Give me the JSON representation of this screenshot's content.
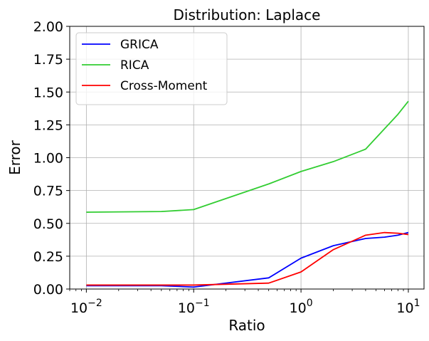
{
  "chart_data": {
    "type": "line",
    "title": "Distribution: Laplace",
    "xlabel": "Ratio",
    "ylabel": "Error",
    "xscale": "log",
    "xlim": [
      0.007,
      14
    ],
    "ylim": [
      0,
      2
    ],
    "grid": true,
    "legend_position": "top-left",
    "x_ticks": [
      {
        "value": 0.01,
        "base": "10",
        "exp": "−2"
      },
      {
        "value": 0.1,
        "base": "10",
        "exp": "−1"
      },
      {
        "value": 1,
        "base": "10",
        "exp": "0"
      },
      {
        "value": 10,
        "base": "10",
        "exp": "1"
      }
    ],
    "y_ticks": [
      {
        "value": 0,
        "label": "0.00"
      },
      {
        "value": 0.25,
        "label": "0.25"
      },
      {
        "value": 0.5,
        "label": "0.50"
      },
      {
        "value": 0.75,
        "label": "0.75"
      },
      {
        "value": 1.0,
        "label": "1.00"
      },
      {
        "value": 1.25,
        "label": "1.25"
      },
      {
        "value": 1.5,
        "label": "1.50"
      },
      {
        "value": 1.75,
        "label": "1.75"
      },
      {
        "value": 2.0,
        "label": "2.00"
      }
    ],
    "x": [
      0.01,
      0.05,
      0.1,
      0.5,
      1,
      2,
      4,
      6,
      8,
      10
    ],
    "series": [
      {
        "name": "GRICA",
        "color": "#0000ff",
        "values": [
          0.025,
          0.025,
          0.015,
          0.085,
          0.235,
          0.33,
          0.385,
          0.395,
          0.41,
          0.43
        ]
      },
      {
        "name": "RICA",
        "color": "#32cd32",
        "values": [
          0.585,
          0.59,
          0.605,
          0.8,
          0.895,
          0.97,
          1.065,
          1.22,
          1.33,
          1.43
        ]
      },
      {
        "name": "Cross-Moment",
        "color": "#ff0000",
        "values": [
          0.03,
          0.03,
          0.03,
          0.045,
          0.13,
          0.3,
          0.41,
          0.43,
          0.425,
          0.415
        ]
      }
    ]
  }
}
